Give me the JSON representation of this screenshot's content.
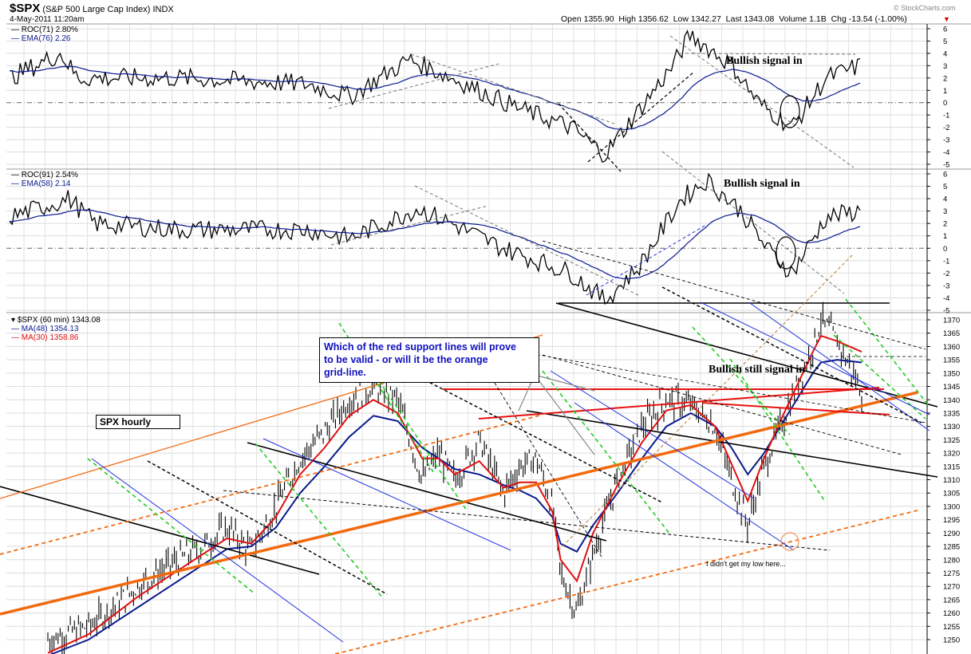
{
  "header": {
    "symbol": "$SPX",
    "name": "(S&P 500 Large Cap Index)",
    "exchange": "INDX",
    "datetime": "4-May-2011 11:20am",
    "quote": "Open 1355.90  High 1356.62  Low 1342.27  Last 1343.08  Volume 1.1B  Chg -13.54 (-1.00%)",
    "watermark": "© StockCharts.com"
  },
  "annotations": {
    "question": [
      "Which of the red support lines will prove",
      "to be valid - or will it be the orange",
      "grid-line."
    ],
    "spx_hourly": "SPX hourly",
    "bullish1": "Bullish signal in",
    "bullish2": "Bullish signal in",
    "bullish3": "Bullish still signal in",
    "low_note": "I didn't get my low here..."
  },
  "colors": {
    "price": "#000000",
    "ma48": "#0a1a8c",
    "ma30": "#e01010",
    "orange": "#f26a0f",
    "green": "#22cc22",
    "blue": "#2233dd",
    "red": "#e81010"
  },
  "chart_data": [
    {
      "type": "line",
      "panel": "ROC indicator 1",
      "legend": [
        "ROC(71) 2.80%",
        "EMA(76) 2.26"
      ],
      "ylim": [
        -5,
        6
      ],
      "yticks": [
        "6",
        "5",
        "4",
        "3",
        "2",
        "1",
        "0",
        "-1",
        "-2",
        "-3",
        "-4",
        "-5"
      ],
      "grid": true
    },
    {
      "type": "line",
      "panel": "ROC indicator 2",
      "legend": [
        "ROC(91) 2.54%",
        "EMA(58) 2.14"
      ],
      "ylim": [
        -5,
        6
      ],
      "yticks": [
        "6",
        "5",
        "4",
        "3",
        "2",
        "1",
        "0",
        "-1",
        "-2",
        "-3",
        "-4",
        "-5"
      ],
      "grid": true
    },
    {
      "type": "line",
      "panel": "price",
      "legend": [
        "$SPX (60 min) 1343.08",
        "MA(48) 1354.13",
        "MA(30) 1358.86"
      ],
      "ylim": [
        1245,
        1375
      ],
      "yticks": [
        "1370",
        "1365",
        "1360",
        "1355",
        "1350",
        "1345",
        "1340",
        "1335",
        "1330",
        "1325",
        "1320",
        "1315",
        "1310",
        "1305",
        "1300",
        "1295",
        "1290",
        "1285",
        "1280",
        "1275",
        "1270",
        "1265",
        "1260",
        "1255",
        "1250"
      ],
      "grid": true,
      "waypoints": {
        "x": [
          0,
          0.05,
          0.08,
          0.11,
          0.15,
          0.19,
          0.22,
          0.25,
          0.28,
          0.31,
          0.34,
          0.37,
          0.4,
          0.43,
          0.46,
          0.48,
          0.5,
          0.53,
          0.56,
          0.58,
          0.6,
          0.62,
          0.63,
          0.65,
          0.67,
          0.7,
          0.73,
          0.76,
          0.79,
          0.82,
          0.84,
          0.86,
          0.88,
          0.9,
          0.92,
          0.94,
          0.95,
          0.97,
          1.0
        ],
        "price": [
          1250,
          1255,
          1262,
          1270,
          1278,
          1285,
          1292,
          1283,
          1300,
          1318,
          1328,
          1340,
          1345,
          1340,
          1310,
          1320,
          1310,
          1325,
          1305,
          1315,
          1318,
          1300,
          1275,
          1260,
          1282,
          1310,
          1330,
          1340,
          1338,
          1330,
          1310,
          1293,
          1315,
          1330,
          1345,
          1360,
          1370,
          1362,
          1343
        ],
        "ma48": [
          1244,
          1250,
          1256,
          1262,
          1270,
          1278,
          1284,
          1285,
          1292,
          1305,
          1315,
          1326,
          1334,
          1332,
          1322,
          1318,
          1314,
          1312,
          1308,
          1306,
          1303,
          1296,
          1286,
          1283,
          1293,
          1305,
          1318,
          1330,
          1335,
          1330,
          1322,
          1312,
          1320,
          1330,
          1340,
          1350,
          1354,
          1355,
          1354
        ],
        "ma30": [
          1245,
          1252,
          1259,
          1266,
          1274,
          1282,
          1288,
          1286,
          1296,
          1312,
          1322,
          1334,
          1340,
          1335,
          1318,
          1318,
          1312,
          1317,
          1307,
          1309,
          1309,
          1298,
          1280,
          1272,
          1290,
          1308,
          1324,
          1336,
          1338,
          1330,
          1316,
          1302,
          1318,
          1332,
          1345,
          1358,
          1364,
          1362,
          1358
        ]
      }
    }
  ]
}
